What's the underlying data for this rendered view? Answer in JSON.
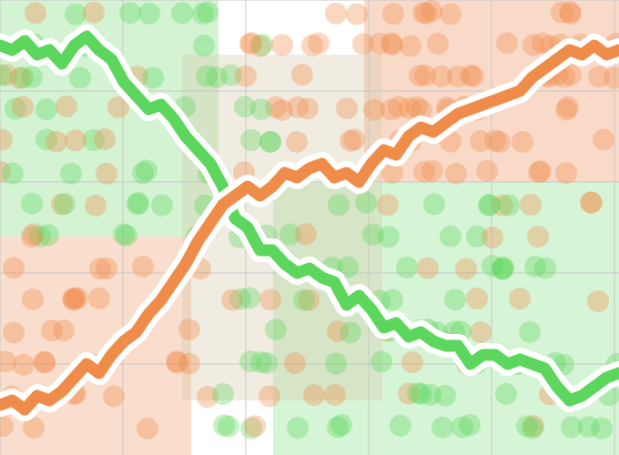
{
  "colors": {
    "green": "#5cd65c",
    "orange": "#f08c4a",
    "green_fill": "#c8f0c8",
    "orange_fill": "#f8d4c0",
    "background": "#ffffff",
    "grid": "#c8c8c8",
    "halo": "#ffffff"
  },
  "chart_data": {
    "type": "line",
    "title": "",
    "xlabel": "",
    "ylabel": "",
    "grid": true,
    "legend": "none",
    "xlim": [
      0,
      100
    ],
    "ylim": [
      0,
      100
    ],
    "series": [
      {
        "color": "green",
        "x": [
          0,
          2,
          4,
          6,
          8,
          10,
          12,
          14,
          16,
          18,
          20,
          22,
          24,
          26,
          28,
          30,
          32,
          34,
          36,
          38,
          40,
          42,
          44,
          46,
          48,
          50,
          52,
          54,
          56,
          58,
          60,
          62,
          64,
          66,
          68,
          70,
          72,
          74,
          76,
          78,
          80,
          82,
          84,
          86,
          88,
          90,
          92,
          94,
          96,
          98,
          100
        ],
        "values": [
          90,
          89,
          91,
          88,
          89,
          86,
          90,
          92,
          89,
          87,
          82,
          79,
          76,
          77,
          74,
          70,
          67,
          64,
          59,
          52,
          50,
          45,
          45,
          42,
          40,
          41,
          39,
          38,
          33,
          35,
          32,
          28,
          29,
          26,
          27,
          25,
          24,
          24,
          20,
          22,
          22,
          20,
          21,
          20,
          19,
          15,
          12,
          13,
          15,
          17,
          18
        ]
      },
      {
        "color": "orange",
        "x": [
          0,
          2,
          4,
          6,
          8,
          10,
          12,
          14,
          16,
          18,
          20,
          22,
          24,
          26,
          28,
          30,
          32,
          34,
          36,
          38,
          40,
          42,
          44,
          46,
          48,
          50,
          52,
          54,
          56,
          58,
          60,
          62,
          64,
          66,
          68,
          70,
          72,
          74,
          76,
          78,
          80,
          82,
          84,
          86,
          88,
          90,
          92,
          94,
          96,
          98,
          100
        ],
        "values": [
          11,
          12,
          10,
          13,
          12,
          14,
          17,
          20,
          18,
          22,
          25,
          27,
          31,
          34,
          38,
          42,
          47,
          51,
          55,
          57,
          59,
          57,
          59,
          62,
          61,
          63,
          64,
          61,
          62,
          60,
          64,
          67,
          66,
          70,
          72,
          71,
          73,
          75,
          76,
          77,
          78,
          79,
          80,
          83,
          85,
          87,
          89,
          88,
          90,
          88,
          89
        ]
      }
    ]
  }
}
